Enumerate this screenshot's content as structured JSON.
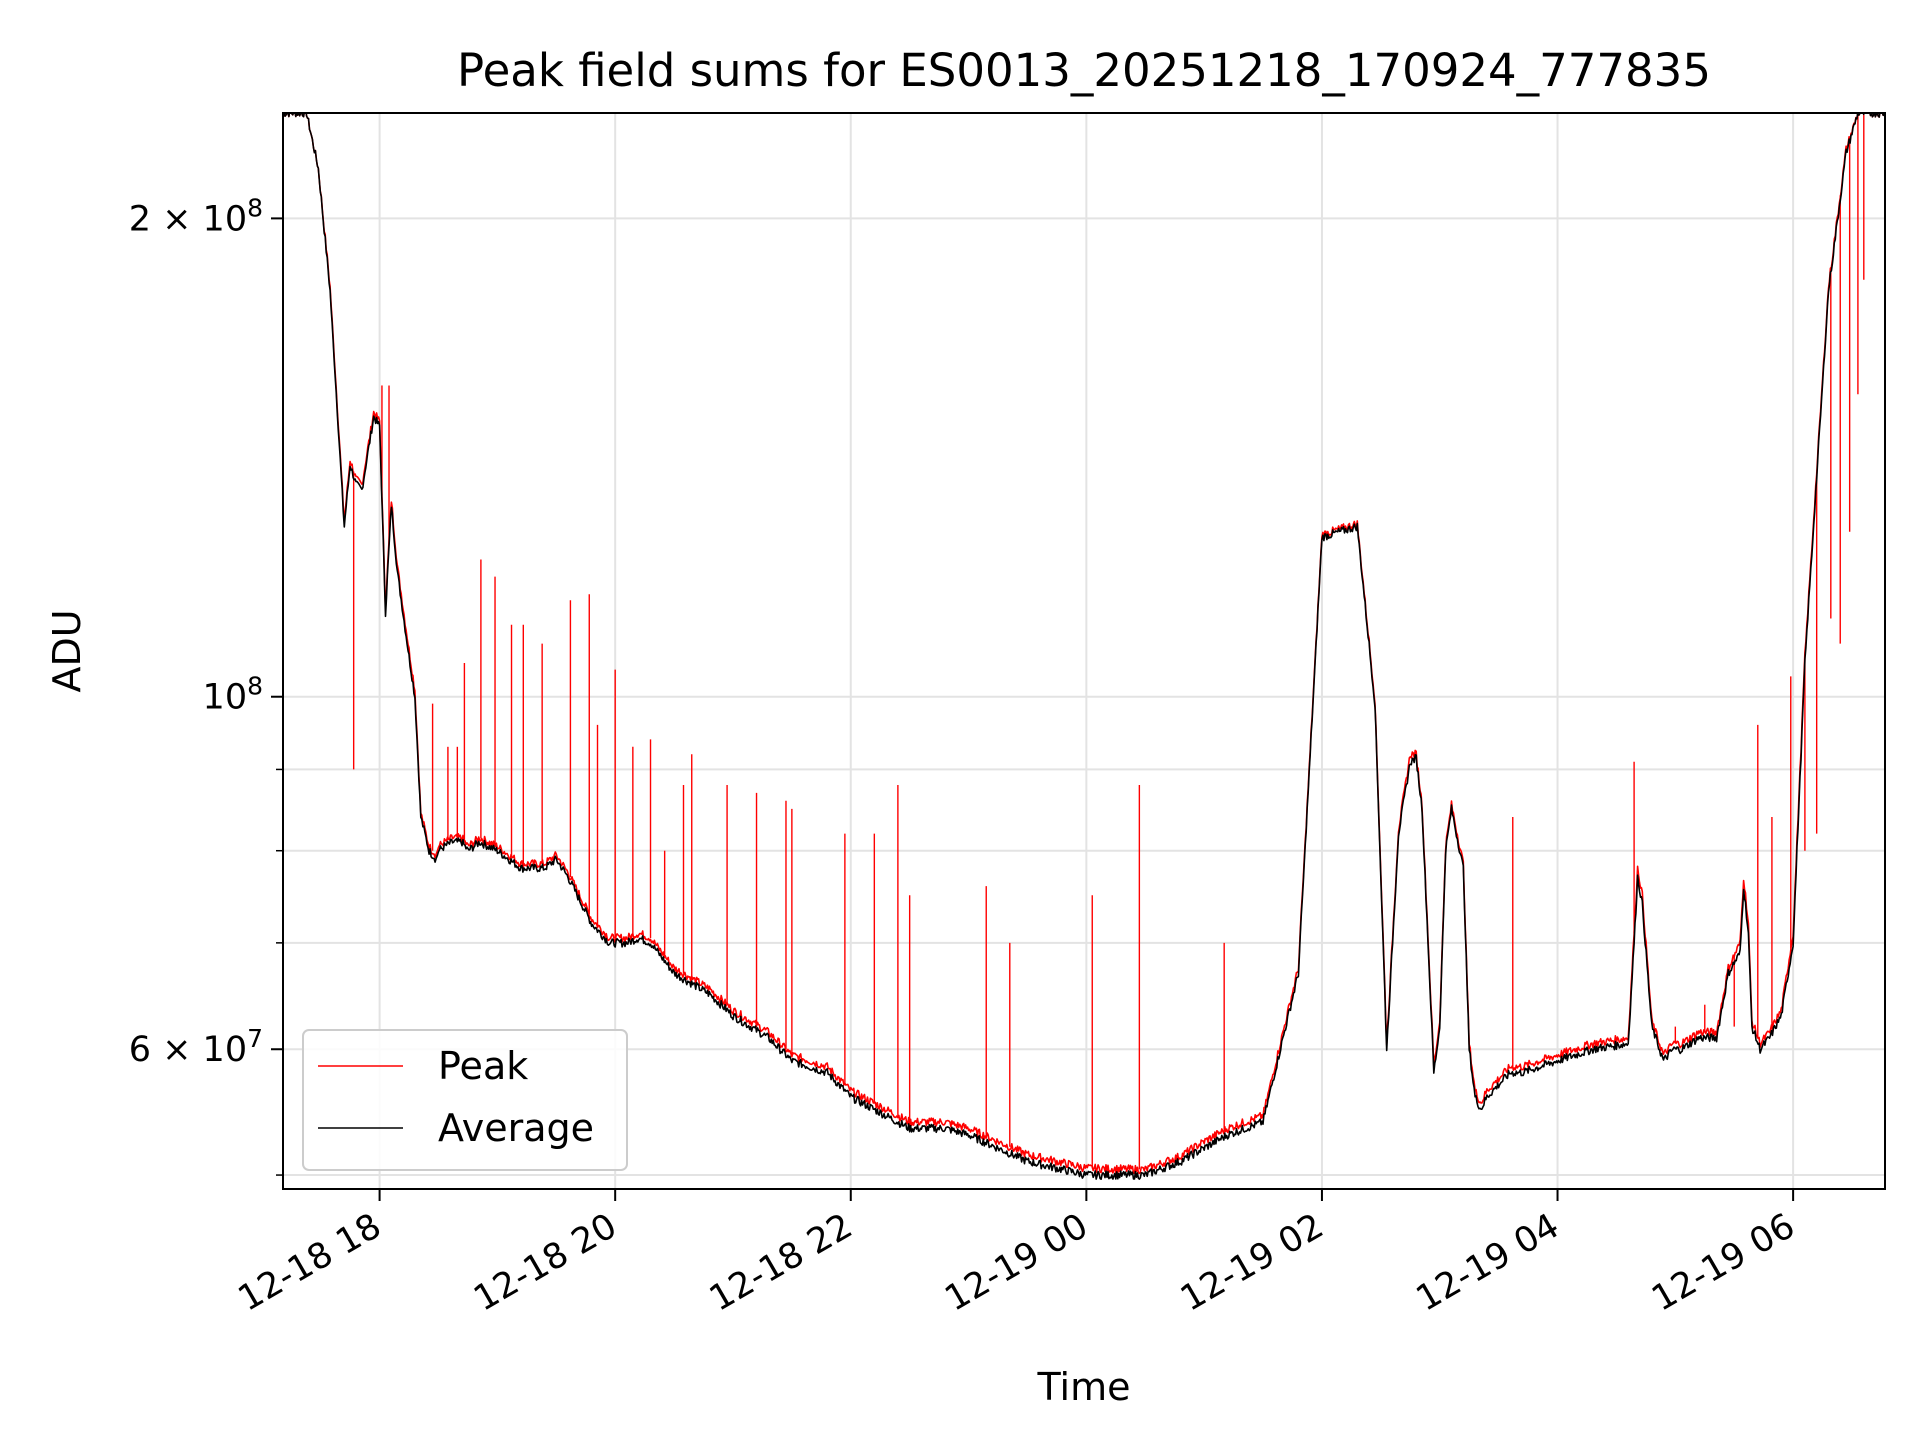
{
  "chart_data": {
    "type": "line",
    "title": "Peak field sums for ES0013_20251218_170924_777835",
    "xlabel": "Time",
    "ylabel": "ADU",
    "y_scale": "log",
    "ylim": [
      49000000,
      233000000
    ],
    "x_unit": "hours since 12-18 17:00",
    "xlim": [
      0.18,
      13.78
    ],
    "grid": true,
    "legend_position": "lower-left",
    "x_ticks": [
      {
        "value": 1,
        "label": "12-18 18"
      },
      {
        "value": 3,
        "label": "12-18 20"
      },
      {
        "value": 5,
        "label": "12-18 22"
      },
      {
        "value": 7,
        "label": "12-19 00"
      },
      {
        "value": 9,
        "label": "12-19 02"
      },
      {
        "value": 11,
        "label": "12-19 04"
      },
      {
        "value": 13,
        "label": "12-19 06"
      }
    ],
    "y_ticks": [
      {
        "value": 200000000,
        "base": "2 × 10",
        "exp": "8"
      },
      {
        "value": 100000000,
        "base": "10",
        "exp": "8"
      },
      {
        "value": 60000000,
        "base": "6 × 10",
        "exp": "7"
      }
    ],
    "y_minor_ticks": [
      50000000,
      70000000,
      80000000,
      90000000
    ],
    "series": [
      {
        "name": "Average",
        "color": "#000000",
        "x": [
          0.18,
          0.38,
          0.48,
          0.58,
          0.7,
          0.75,
          0.8,
          0.85,
          0.95,
          1.0,
          1.05,
          1.1,
          1.15,
          1.25,
          1.3,
          1.35,
          1.42,
          1.48,
          1.5,
          1.55,
          1.62,
          1.7,
          1.75,
          1.85,
          2.0,
          2.2,
          2.4,
          2.5,
          2.6,
          2.8,
          2.95,
          3.0,
          3.1,
          3.2,
          3.3,
          3.5,
          3.8,
          4.0,
          4.3,
          4.5,
          4.8,
          5.0,
          5.5,
          5.8,
          6.0,
          6.5,
          7.0,
          7.5,
          7.8,
          8.0,
          8.2,
          8.5,
          8.8,
          9.0,
          9.3,
          9.45,
          9.55,
          9.65,
          9.75,
          9.8,
          9.85,
          9.95,
          10.0,
          10.05,
          10.1,
          10.2,
          10.25,
          10.3,
          10.35,
          10.4,
          10.5,
          10.6,
          10.7,
          11.0,
          11.3,
          11.6,
          11.65,
          11.68,
          11.72,
          11.8,
          11.9,
          11.98,
          12.05,
          12.2,
          12.35,
          12.45,
          12.55,
          12.58,
          12.62,
          12.65,
          12.72,
          12.8,
          12.9,
          13.0,
          13.1,
          13.3,
          13.45,
          13.55,
          13.78
        ],
        "values": [
          233000000,
          233000000,
          215000000,
          180000000,
          128000000,
          140000000,
          136000000,
          135000000,
          150000000,
          148000000,
          113000000,
          132000000,
          120000000,
          106000000,
          100000000,
          84000000,
          80000000,
          79000000,
          80000000,
          80500000,
          81000000,
          81000000,
          80000000,
          81000000,
          80000000,
          78000000,
          78000000,
          79000000,
          77000000,
          72000000,
          70000000,
          70000000,
          70000000,
          70500000,
          70000000,
          67000000,
          65000000,
          63000000,
          61000000,
          59000000,
          58000000,
          56000000,
          53500000,
          53500000,
          53000000,
          51000000,
          50000000,
          50000000,
          51000000,
          52000000,
          53000000,
          54000000,
          67000000,
          126000000,
          128000000,
          99000000,
          60000000,
          82000000,
          91000000,
          91500000,
          85000000,
          58000000,
          62000000,
          80000000,
          85000000,
          78000000,
          60000000,
          56000000,
          55000000,
          56000000,
          57000000,
          58000000,
          58000000,
          59000000,
          60000000,
          60500000,
          70000000,
          77000000,
          74000000,
          62000000,
          59000000,
          60000000,
          60000000,
          61000000,
          61000000,
          67000000,
          69000000,
          76000000,
          71000000,
          62000000,
          60000000,
          61000000,
          63000000,
          70000000,
          105000000,
          180000000,
          220000000,
          233000000,
          233000000
        ]
      },
      {
        "name": "Peak",
        "color": "#ff0000",
        "x": [
          0.18,
          0.38,
          0.48,
          0.58,
          0.7,
          0.75,
          0.8,
          0.85,
          0.95,
          1.0,
          1.05,
          1.1,
          1.15,
          1.25,
          1.3,
          1.35,
          1.42,
          1.48,
          1.5,
          1.55,
          1.62,
          1.7,
          1.75,
          1.85,
          2.0,
          2.2,
          2.4,
          2.5,
          2.6,
          2.8,
          2.95,
          3.0,
          3.1,
          3.2,
          3.3,
          3.5,
          3.8,
          4.0,
          4.3,
          4.5,
          4.8,
          5.0,
          5.5,
          5.8,
          6.0,
          6.5,
          7.0,
          7.5,
          7.8,
          8.0,
          8.2,
          8.5,
          8.8,
          9.0,
          9.3,
          9.45,
          9.55,
          9.65,
          9.75,
          9.8,
          9.85,
          9.95,
          10.0,
          10.05,
          10.1,
          10.2,
          10.25,
          10.3,
          10.35,
          10.4,
          10.5,
          10.6,
          10.7,
          11.0,
          11.3,
          11.6,
          11.65,
          11.68,
          11.72,
          11.8,
          11.9,
          11.98,
          12.05,
          12.2,
          12.35,
          12.45,
          12.55,
          12.58,
          12.62,
          12.65,
          12.72,
          12.8,
          12.9,
          13.0,
          13.1,
          13.3,
          13.45,
          13.55,
          13.78
        ],
        "values": [
          233000000,
          233000000,
          215000000,
          181000000,
          129000000,
          141000000,
          137000000,
          136000000,
          151000000,
          149000000,
          114000000,
          133000000,
          121000000,
          107000000,
          101000000,
          84500000,
          80500000,
          79500000,
          80500000,
          81000000,
          81500000,
          81500000,
          80500000,
          81500000,
          80500000,
          78500000,
          78500000,
          79500000,
          77500000,
          72500000,
          70500000,
          70500000,
          70500000,
          71000000,
          70500000,
          67500000,
          65500000,
          63500000,
          61500000,
          59500000,
          58500000,
          56500000,
          54000000,
          54000000,
          53500000,
          51500000,
          50500000,
          50400000,
          51400000,
          52500000,
          53500000,
          54500000,
          67500000,
          126500000,
          128500000,
          99500000,
          60500000,
          82500000,
          92000000,
          92000000,
          85500000,
          58500000,
          62500000,
          80500000,
          85500000,
          78500000,
          60500000,
          56500000,
          55500000,
          56500000,
          57500000,
          58500000,
          58500000,
          59500000,
          60500000,
          61000000,
          71000000,
          78000000,
          75000000,
          62500000,
          59500000,
          60500000,
          60500000,
          61500000,
          61500000,
          67500000,
          70000000,
          77000000,
          72000000,
          62500000,
          60500000,
          61500000,
          63500000,
          71000000,
          106000000,
          181000000,
          221000000,
          233000000,
          233000000
        ],
        "spikes": [
          [
            0.78,
            90000000
          ],
          [
            1.02,
            157000000
          ],
          [
            1.08,
            157000000
          ],
          [
            1.45,
            99000000
          ],
          [
            1.58,
            93000000
          ],
          [
            1.66,
            93000000
          ],
          [
            1.72,
            105000000
          ],
          [
            1.86,
            122000000
          ],
          [
            1.98,
            119000000
          ],
          [
            2.12,
            111000000
          ],
          [
            2.22,
            111000000
          ],
          [
            2.38,
            108000000
          ],
          [
            2.62,
            115000000
          ],
          [
            2.78,
            116000000
          ],
          [
            2.85,
            96000000
          ],
          [
            3.0,
            104000000
          ],
          [
            3.15,
            93000000
          ],
          [
            3.3,
            94000000
          ],
          [
            3.42,
            80000000
          ],
          [
            3.58,
            88000000
          ],
          [
            3.65,
            92000000
          ],
          [
            3.95,
            88000000
          ],
          [
            4.2,
            87000000
          ],
          [
            4.45,
            86000000
          ],
          [
            4.5,
            85000000
          ],
          [
            4.95,
            82000000
          ],
          [
            5.2,
            82000000
          ],
          [
            5.4,
            88000000
          ],
          [
            5.5,
            75000000
          ],
          [
            6.15,
            76000000
          ],
          [
            6.35,
            70000000
          ],
          [
            7.05,
            75000000
          ],
          [
            7.45,
            88000000
          ],
          [
            8.17,
            70000000
          ],
          [
            10.62,
            84000000
          ],
          [
            11.65,
            91000000
          ],
          [
            12.0,
            62000000
          ],
          [
            12.25,
            64000000
          ],
          [
            12.5,
            62000000
          ],
          [
            12.7,
            96000000
          ],
          [
            12.82,
            84000000
          ],
          [
            12.98,
            103000000
          ],
          [
            13.1,
            80000000
          ],
          [
            13.2,
            82000000
          ],
          [
            13.32,
            112000000
          ],
          [
            13.4,
            108000000
          ],
          [
            13.48,
            127000000
          ],
          [
            13.55,
            155000000
          ],
          [
            13.6,
            183000000
          ]
        ]
      }
    ]
  }
}
